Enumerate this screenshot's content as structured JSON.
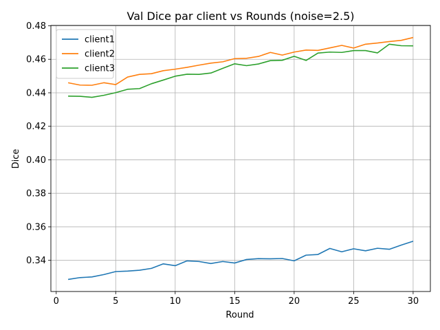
{
  "chart_data": {
    "type": "line",
    "title": "Val Dice par client vs Rounds (noise=2.5)",
    "xlabel": "Round",
    "ylabel": "Dice",
    "xlim": [
      -0.45,
      31.45
    ],
    "ylim": [
      0.3214,
      0.4802
    ],
    "xticks": [
      0,
      5,
      10,
      15,
      20,
      25,
      30
    ],
    "yticks": [
      0.34,
      0.36,
      0.38,
      0.4,
      0.42,
      0.44,
      0.46,
      0.48
    ],
    "ytick_labels": [
      "0.34",
      "0.36",
      "0.38",
      "0.40",
      "0.42",
      "0.44",
      "0.46",
      "0.48"
    ],
    "grid": true,
    "legend_position": "top-left",
    "x": [
      1,
      2,
      3,
      4,
      5,
      6,
      7,
      8,
      9,
      10,
      11,
      12,
      13,
      14,
      15,
      16,
      17,
      18,
      19,
      20,
      21,
      22,
      23,
      24,
      25,
      26,
      27,
      28,
      29,
      30
    ],
    "series": [
      {
        "name": "client1",
        "color": "#1f77b4",
        "values": [
          0.3286,
          0.3297,
          0.3301,
          0.3315,
          0.3333,
          0.3336,
          0.3341,
          0.3352,
          0.3379,
          0.3368,
          0.3397,
          0.3393,
          0.3381,
          0.3393,
          0.3384,
          0.3405,
          0.341,
          0.3409,
          0.3411,
          0.3397,
          0.3431,
          0.3435,
          0.3471,
          0.3451,
          0.3469,
          0.3457,
          0.3472,
          0.3466,
          0.3491,
          0.3514
        ]
      },
      {
        "name": "client2",
        "color": "#ff7f0e",
        "values": [
          0.446,
          0.4446,
          0.4445,
          0.446,
          0.4449,
          0.4494,
          0.451,
          0.4514,
          0.4532,
          0.4541,
          0.4552,
          0.4565,
          0.4577,
          0.4585,
          0.4604,
          0.4606,
          0.4617,
          0.4641,
          0.4625,
          0.4643,
          0.4655,
          0.4653,
          0.4668,
          0.4683,
          0.4667,
          0.469,
          0.4697,
          0.4706,
          0.4713,
          0.473
        ]
      },
      {
        "name": "client3",
        "color": "#2ca02c",
        "values": [
          0.438,
          0.4379,
          0.4373,
          0.4385,
          0.4401,
          0.4421,
          0.4425,
          0.4454,
          0.4476,
          0.4499,
          0.4511,
          0.451,
          0.4518,
          0.4546,
          0.4573,
          0.4562,
          0.4572,
          0.4592,
          0.4594,
          0.4618,
          0.4593,
          0.4637,
          0.4643,
          0.4641,
          0.4652,
          0.4652,
          0.4638,
          0.469,
          0.4681,
          0.468
        ]
      }
    ]
  }
}
